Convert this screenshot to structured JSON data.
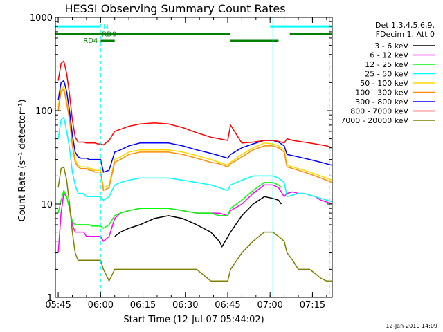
{
  "chart_data": {
    "type": "line",
    "title": "HESSI Observing Summary Count Rates",
    "xlabel": "Start Time (12-Jul-07 05:44:02)",
    "ylabel": "Count Rate (s⁻¹ detector⁻¹)",
    "x_unit": "minutes after 05:44:02",
    "xlim": [
      0,
      98
    ],
    "ylim": [
      1,
      1000
    ],
    "yscale": "log",
    "x_ticks": [
      {
        "value": 1,
        "label": "05:45"
      },
      {
        "value": 16,
        "label": "06:00"
      },
      {
        "value": 31,
        "label": "06:15"
      },
      {
        "value": 46,
        "label": "06:30"
      },
      {
        "value": 61,
        "label": "06:45"
      },
      {
        "value": 76,
        "label": "07:00"
      },
      {
        "value": 91,
        "label": "07:15"
      }
    ],
    "y_ticks": [
      {
        "value": 1,
        "label": "1"
      },
      {
        "value": 10,
        "label": "10"
      },
      {
        "value": 100,
        "label": "100"
      },
      {
        "value": 1000,
        "label": "1000"
      }
    ],
    "legend_header": [
      "Det 1,3,4,5,6,9,",
      "FDecim 1, Att 0"
    ],
    "legend_position": "right",
    "series": [
      {
        "name": "3 - 6 keV",
        "color": "#000000",
        "x": [
          21,
          23,
          26,
          30,
          35,
          40,
          45,
          50,
          55,
          58,
          59,
          62,
          66,
          70,
          74,
          77,
          79,
          80
        ],
        "y": [
          4.5,
          5,
          5.5,
          6,
          7,
          7.5,
          7,
          6,
          5,
          4,
          3.5,
          5,
          7.5,
          10,
          12,
          11.5,
          11,
          10
        ]
      },
      {
        "name": "6 - 12 keV",
        "color": "#ff00ff",
        "x": [
          1,
          2,
          3,
          4,
          5,
          6,
          7,
          8,
          9,
          10,
          11,
          12,
          13,
          14,
          15,
          16,
          17,
          19,
          21,
          23,
          26,
          30,
          35,
          40,
          45,
          50,
          55,
          58,
          61,
          62,
          66,
          70,
          74,
          77,
          79,
          81,
          82,
          84,
          86,
          88,
          90,
          92,
          94,
          96,
          98
        ],
        "y": [
          3,
          8,
          13,
          12,
          9,
          6,
          5,
          5,
          5,
          5,
          4.5,
          4.5,
          4.5,
          4.5,
          4.5,
          4.5,
          4,
          4.5,
          7,
          8,
          8.5,
          9,
          9,
          9,
          8.5,
          8,
          8,
          8,
          7.5,
          8.5,
          10,
          13,
          16,
          16,
          15,
          12,
          13,
          13.5,
          13,
          13,
          12.5,
          12,
          11,
          10.5,
          10
        ]
      },
      {
        "name": "12 - 25 keV",
        "color": "#00ff00",
        "x": [
          1,
          2,
          3,
          4,
          5,
          6,
          7,
          8,
          9,
          10,
          11,
          12,
          13,
          14,
          15,
          16,
          17,
          19,
          21,
          23,
          26,
          30,
          35,
          40,
          45,
          50,
          55,
          58,
          61,
          62,
          66,
          70,
          74,
          77,
          79,
          80
        ],
        "y": [
          8,
          11,
          14,
          12,
          9,
          6.5,
          6,
          6,
          6,
          6,
          6,
          6,
          5.8,
          5.8,
          5.8,
          5.8,
          5.5,
          6,
          7.5,
          8,
          8.5,
          9,
          9,
          9,
          8.5,
          8,
          8,
          7.5,
          7.5,
          9,
          11,
          14,
          17,
          17,
          16,
          15
        ]
      },
      {
        "name": "25 - 50 keV",
        "color": "#00ffff",
        "x": [
          1,
          2,
          3,
          4,
          5,
          6,
          7,
          8,
          9,
          10,
          11,
          12,
          13,
          14,
          15,
          16,
          17,
          19,
          21,
          23,
          26,
          30,
          35,
          40,
          45,
          50,
          55,
          58,
          61,
          62,
          66,
          70,
          74,
          77,
          79,
          81,
          82,
          84,
          86,
          88,
          90,
          92,
          94,
          96,
          98
        ],
        "y": [
          50,
          80,
          85,
          60,
          40,
          22,
          16,
          13,
          13,
          13,
          12,
          12,
          12,
          12,
          12,
          12,
          11,
          12,
          16,
          17,
          18,
          19,
          19,
          19,
          18,
          17,
          16,
          15,
          14,
          16,
          18,
          20,
          20,
          20,
          19,
          17,
          12,
          12.5,
          13,
          13,
          12.5,
          12,
          11.5,
          11,
          10.5
        ]
      },
      {
        "name": "50 - 100 keV",
        "color": "#ffd800",
        "x": [
          1,
          2,
          3,
          4,
          5,
          6,
          7,
          8,
          9,
          10,
          11,
          12,
          13,
          14,
          15,
          16,
          17,
          19,
          21,
          23,
          26,
          30,
          35,
          40,
          45,
          50,
          55,
          58,
          61,
          62,
          66,
          70,
          74,
          77,
          79,
          81,
          82,
          84,
          86,
          88,
          90,
          92,
          94,
          96,
          98
        ],
        "y": [
          110,
          170,
          180,
          130,
          85,
          45,
          30,
          26,
          25,
          25,
          25,
          24,
          24,
          23,
          23,
          23,
          15,
          16,
          30,
          32,
          36,
          38,
          38,
          38,
          36,
          33,
          30,
          28,
          26,
          28,
          34,
          40,
          45,
          44,
          42,
          38,
          26,
          25,
          24,
          23,
          22,
          21,
          20,
          19,
          18
        ]
      },
      {
        "name": "100 - 300 keV",
        "color": "#ff8c00",
        "x": [
          1,
          2,
          3,
          4,
          5,
          6,
          7,
          8,
          9,
          10,
          11,
          12,
          13,
          14,
          15,
          16,
          17,
          19,
          21,
          23,
          26,
          30,
          35,
          40,
          45,
          50,
          55,
          58,
          61,
          62,
          66,
          70,
          74,
          77,
          79,
          81,
          82,
          84,
          86,
          88,
          90,
          92,
          94,
          96,
          98
        ],
        "y": [
          100,
          160,
          170,
          120,
          80,
          42,
          28,
          25,
          24,
          24,
          24,
          23,
          23,
          22,
          22,
          22,
          14,
          15,
          28,
          30,
          34,
          36,
          36,
          36,
          34,
          31,
          28,
          27,
          25,
          27,
          32,
          38,
          42,
          42,
          40,
          36,
          25,
          24,
          23,
          22,
          21,
          20,
          19,
          18,
          17
        ]
      },
      {
        "name": "300 - 800 keV",
        "color": "#0000ff",
        "x": [
          1,
          2,
          3,
          4,
          5,
          6,
          7,
          8,
          9,
          10,
          11,
          12,
          13,
          14,
          15,
          16,
          17,
          19,
          21,
          23,
          26,
          30,
          35,
          40,
          45,
          50,
          55,
          58,
          61,
          62,
          66,
          70,
          74,
          77,
          79,
          81,
          82,
          84,
          86,
          88,
          90,
          92,
          94,
          96,
          98
        ],
        "y": [
          130,
          200,
          210,
          160,
          100,
          55,
          36,
          32,
          31,
          31,
          31,
          30,
          30,
          30,
          30,
          30,
          22,
          23,
          36,
          38,
          42,
          45,
          45,
          45,
          42,
          38,
          35,
          33,
          31,
          34,
          40,
          44,
          48,
          48,
          46,
          42,
          34,
          33,
          32,
          31,
          30,
          29,
          28,
          27,
          26
        ]
      },
      {
        "name": "800 - 7000 keV",
        "color": "#ff0000",
        "x": [
          1,
          2,
          3,
          4,
          5,
          6,
          7,
          8,
          9,
          10,
          11,
          12,
          13,
          14,
          15,
          16,
          17,
          19,
          21,
          23,
          26,
          30,
          35,
          40,
          45,
          50,
          55,
          58,
          61,
          62,
          66,
          70,
          74,
          77,
          79,
          81,
          82,
          84,
          86,
          88,
          90,
          92,
          94,
          96,
          98
        ],
        "y": [
          210,
          320,
          340,
          250,
          150,
          80,
          52,
          46,
          46,
          46,
          45,
          45,
          45,
          45,
          44,
          44,
          43,
          48,
          60,
          63,
          68,
          72,
          74,
          72,
          66,
          58,
          52,
          50,
          48,
          70,
          45,
          46,
          48,
          48,
          47,
          45,
          50,
          48,
          47,
          46,
          45,
          44,
          43,
          42,
          40
        ]
      },
      {
        "name": "7000 - 20000 keV",
        "color": "#808000",
        "x": [
          1,
          2,
          3,
          4,
          5,
          6,
          7,
          8,
          9,
          10,
          11,
          12,
          13,
          14,
          15,
          16,
          17,
          19,
          21,
          23,
          26,
          30,
          35,
          40,
          45,
          50,
          55,
          58,
          61,
          62,
          66,
          70,
          74,
          77,
          79,
          81,
          82,
          84,
          86,
          88,
          90,
          92,
          94,
          96,
          98
        ],
        "y": [
          15,
          24,
          25,
          18,
          10,
          5,
          3,
          2.5,
          2.5,
          2.5,
          2.5,
          2.5,
          2.5,
          2.5,
          2.5,
          2.5,
          2,
          1.5,
          2,
          2,
          2,
          2,
          2,
          2,
          2,
          2,
          1.5,
          1.5,
          1.5,
          2,
          3,
          4,
          5,
          5,
          4.5,
          4,
          3,
          2.5,
          2,
          2,
          2,
          1.8,
          1.6,
          1.5,
          1.5
        ]
      }
    ],
    "state_bars": [
      {
        "label": "N",
        "color": "#00ffff",
        "y": 800,
        "segments": [
          [
            0,
            16
          ],
          [
            76,
            98
          ]
        ]
      },
      {
        "label": "RD9",
        "color": "#008000",
        "y": 660,
        "segments": [
          [
            0,
            62
          ],
          [
            83,
            98
          ]
        ]
      },
      {
        "label": "RD4",
        "color": "#008000",
        "y": 560,
        "segments": [
          [
            16,
            21
          ],
          [
            62,
            79
          ]
        ]
      }
    ],
    "vertical_markers": [
      {
        "x": 16,
        "style": "dashed",
        "color": "#00ffff"
      },
      {
        "x": 77,
        "style": "solid",
        "color": "#00ffff"
      },
      {
        "x": 97,
        "style": "dashed",
        "color": "#00ffff"
      }
    ]
  },
  "footer_stamp": "12-Jan-2010 14:09"
}
